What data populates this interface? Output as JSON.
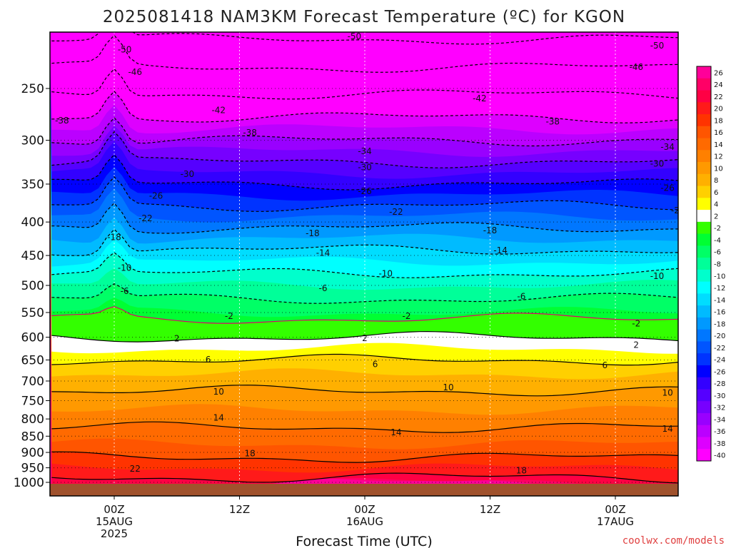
{
  "title": "2025081418 NAM3KM Forecast Temperature (ºC) for KGON",
  "credit": "coolwx.com/models",
  "chart_data": {
    "type": "heatmap",
    "title": "2025081418 NAM3KM Forecast Temperature (ºC) for KGON",
    "xlabel": "Forecast Time (UTC)",
    "ylabel": "",
    "x_unit": "hours from 15AUG 00Z",
    "xlim": [
      -6,
      69
    ],
    "ylim": [
      1000,
      200
    ],
    "y_scale": "log-pressure, inverted",
    "x_ticks": [
      {
        "value": 0,
        "lines": [
          "00Z",
          "15AUG",
          "2025"
        ]
      },
      {
        "value": 12,
        "lines": [
          "12Z"
        ]
      },
      {
        "value": 24,
        "lines": [
          "00Z",
          "16AUG"
        ]
      },
      {
        "value": 36,
        "lines": [
          "12Z"
        ]
      },
      {
        "value": 48,
        "lines": [
          "00Z",
          "17AUG"
        ]
      }
    ],
    "y_ticks": [
      250,
      300,
      350,
      400,
      450,
      500,
      550,
      600,
      650,
      700,
      750,
      800,
      850,
      900,
      950,
      1000
    ],
    "colorbar": {
      "levels": [
        26,
        24,
        22,
        20,
        18,
        16,
        14,
        12,
        10,
        8,
        6,
        4,
        2,
        -2,
        -4,
        -6,
        -8,
        -10,
        -12,
        -14,
        -16,
        -18,
        -20,
        -22,
        -24,
        -26,
        -28,
        -30,
        -32,
        -34,
        -36,
        -38,
        -40
      ],
      "colors": [
        "#ff0099",
        "#ff0066",
        "#ff0044",
        "#ff1a1a",
        "#ff3300",
        "#ff5500",
        "#ff6a00",
        "#ff8000",
        "#ff9900",
        "#ffb000",
        "#ffd000",
        "#ffff00",
        "#ffffff",
        "#33ff00",
        "#00ff33",
        "#00ff66",
        "#00ff99",
        "#00ffcc",
        "#00ffff",
        "#00ddff",
        "#00bbff",
        "#0099ff",
        "#0077ff",
        "#0055ff",
        "#0033ff",
        "#0000ff",
        "#3300ff",
        "#5500ff",
        "#7700ff",
        "#9900ff",
        "#bb00ff",
        "#dd00ff",
        "#ff00ff"
      ]
    },
    "temperature_profile": [
      {
        "p": 1000,
        "t": 23
      },
      {
        "p": 950,
        "t": 20
      },
      {
        "p": 900,
        "t": 17
      },
      {
        "p": 850,
        "t": 15
      },
      {
        "p": 800,
        "t": 13
      },
      {
        "p": 750,
        "t": 11
      },
      {
        "p": 700,
        "t": 9
      },
      {
        "p": 650,
        "t": 6
      },
      {
        "p": 600,
        "t": 2
      },
      {
        "p": 575,
        "t": 0
      },
      {
        "p": 550,
        "t": -4
      },
      {
        "p": 500,
        "t": -8
      },
      {
        "p": 450,
        "t": -13
      },
      {
        "p": 400,
        "t": -19
      },
      {
        "p": 350,
        "t": -26
      },
      {
        "p": 300,
        "t": -34
      },
      {
        "p": 250,
        "t": -43
      },
      {
        "p": 200,
        "t": -52
      }
    ],
    "contours": [
      {
        "level": -50,
        "labels": [
          {
            "x": 1,
            "p": 218
          },
          {
            "x": 23,
            "p": 208
          },
          {
            "x": 52,
            "p": 215
          }
        ]
      },
      {
        "level": -46,
        "labels": [
          {
            "x": 2,
            "p": 236
          },
          {
            "x": 50,
            "p": 232
          }
        ]
      },
      {
        "level": -42,
        "labels": [
          {
            "x": 10,
            "p": 270
          },
          {
            "x": 35,
            "p": 259
          }
        ]
      },
      {
        "level": -38,
        "labels": [
          {
            "x": -5,
            "p": 280
          },
          {
            "x": 13,
            "p": 292
          },
          {
            "x": 42,
            "p": 281
          }
        ]
      },
      {
        "level": -34,
        "labels": [
          {
            "x": 24,
            "p": 312
          },
          {
            "x": 53,
            "p": 307
          }
        ]
      },
      {
        "level": -30,
        "labels": [
          {
            "x": 7,
            "p": 338
          },
          {
            "x": 24,
            "p": 330
          },
          {
            "x": 52,
            "p": 326
          }
        ]
      },
      {
        "level": -26,
        "labels": [
          {
            "x": 4,
            "p": 365
          },
          {
            "x": 24,
            "p": 359
          },
          {
            "x": 53,
            "p": 355
          }
        ]
      },
      {
        "level": -22,
        "labels": [
          {
            "x": 3,
            "p": 395
          },
          {
            "x": 27,
            "p": 386
          },
          {
            "x": 54,
            "p": 384
          }
        ]
      },
      {
        "level": -18,
        "labels": [
          {
            "x": 0,
            "p": 422
          },
          {
            "x": 19,
            "p": 416
          },
          {
            "x": 36,
            "p": 412
          }
        ]
      },
      {
        "level": -14,
        "labels": [
          {
            "x": 20,
            "p": 446
          },
          {
            "x": 37,
            "p": 442
          }
        ]
      },
      {
        "level": -10,
        "labels": [
          {
            "x": 1,
            "p": 470
          },
          {
            "x": 26,
            "p": 480
          },
          {
            "x": 52,
            "p": 484
          }
        ]
      },
      {
        "level": -6,
        "labels": [
          {
            "x": 1,
            "p": 510
          },
          {
            "x": 20,
            "p": 505
          },
          {
            "x": 39,
            "p": 520
          }
        ]
      },
      {
        "level": -2,
        "labels": [
          {
            "x": 11,
            "p": 557
          },
          {
            "x": 28,
            "p": 557
          },
          {
            "x": 50,
            "p": 572
          }
        ]
      },
      {
        "level": 2,
        "labels": [
          {
            "x": 6,
            "p": 603
          },
          {
            "x": 24,
            "p": 602
          },
          {
            "x": 50,
            "p": 617
          }
        ]
      },
      {
        "level": 6,
        "labels": [
          {
            "x": 9,
            "p": 649
          },
          {
            "x": 25,
            "p": 660
          },
          {
            "x": 47,
            "p": 662
          }
        ]
      },
      {
        "level": 10,
        "labels": [
          {
            "x": 10,
            "p": 727
          },
          {
            "x": 32,
            "p": 716
          },
          {
            "x": 53,
            "p": 730
          }
        ]
      },
      {
        "level": 14,
        "labels": [
          {
            "x": 10,
            "p": 797
          },
          {
            "x": 27,
            "p": 839
          },
          {
            "x": 53,
            "p": 828
          }
        ]
      },
      {
        "level": 18,
        "labels": [
          {
            "x": 13,
            "p": 903
          },
          {
            "x": 39,
            "p": 960
          }
        ]
      },
      {
        "level": 22,
        "labels": [
          {
            "x": 2,
            "p": 953
          }
        ]
      }
    ]
  }
}
